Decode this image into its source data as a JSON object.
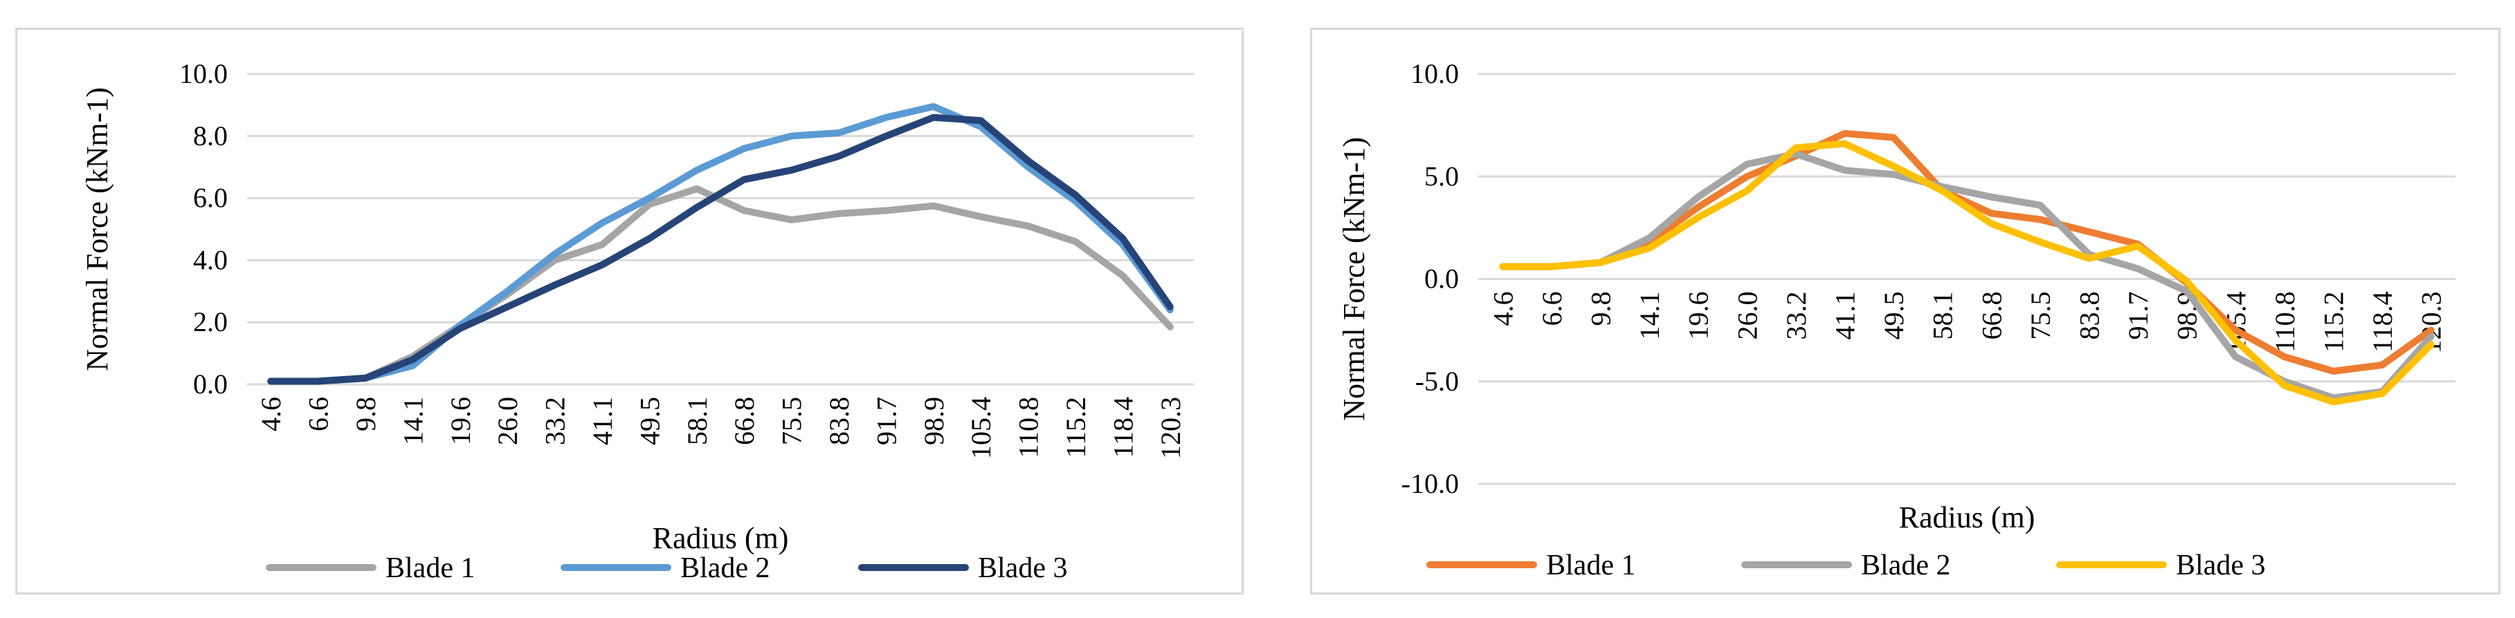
{
  "chart_data": [
    {
      "type": "line",
      "title": "",
      "xlabel": "Radius (m)",
      "ylabel": "Normal Force (kNm-1)",
      "ylim": [
        0,
        10
      ],
      "yticks": [
        "0.0",
        "2.0",
        "4.0",
        "6.0",
        "8.0",
        "10.0"
      ],
      "grid": true,
      "legend_position": "bottom",
      "categories": [
        "4.6",
        "6.6",
        "9.8",
        "14.1",
        "19.6",
        "26.0",
        "33.2",
        "41.1",
        "49.5",
        "58.1",
        "66.8",
        "75.5",
        "83.8",
        "91.7",
        "98.9",
        "105.4",
        "110.8",
        "115.2",
        "118.4",
        "120.3"
      ],
      "series": [
        {
          "name": "Blade 1",
          "color": "#a5a5a5",
          "values": [
            0.1,
            0.1,
            0.2,
            0.9,
            1.9,
            2.9,
            4.0,
            4.5,
            5.8,
            6.3,
            5.6,
            5.3,
            5.5,
            5.6,
            5.75,
            5.4,
            5.1,
            4.6,
            3.5,
            1.85
          ]
        },
        {
          "name": "Blade 2",
          "color": "#5b9bd5",
          "values": [
            0.1,
            0.1,
            0.2,
            0.6,
            1.9,
            3.0,
            4.2,
            5.2,
            6.0,
            6.9,
            7.6,
            8.0,
            8.1,
            8.6,
            8.95,
            8.3,
            7.0,
            5.9,
            4.5,
            2.4
          ]
        },
        {
          "name": "Blade 3",
          "color": "#264478",
          "values": [
            0.1,
            0.1,
            0.2,
            0.8,
            1.8,
            2.5,
            3.2,
            3.85,
            4.7,
            5.7,
            6.6,
            6.9,
            7.35,
            8.0,
            8.6,
            8.5,
            7.2,
            6.1,
            4.7,
            2.5
          ]
        }
      ]
    },
    {
      "type": "line",
      "title": "",
      "xlabel": "Radius (m)",
      "ylabel": "Normal Force (kNm-1)",
      "ylim": [
        -10,
        10
      ],
      "yticks": [
        "-10.0",
        "-5.0",
        "0.0",
        "5.0",
        "10.0"
      ],
      "grid": true,
      "legend_position": "bottom",
      "categories": [
        "4.6",
        "6.6",
        "9.8",
        "14.1",
        "19.6",
        "26.0",
        "33.2",
        "41.1",
        "49.5",
        "58.1",
        "66.8",
        "75.5",
        "83.8",
        "91.7",
        "98.9",
        "105.4",
        "110.8",
        "115.2",
        "118.4",
        "120.3"
      ],
      "series": [
        {
          "name": "Blade 1",
          "color": "#ed7d31",
          "values": [
            0.6,
            0.6,
            0.8,
            1.8,
            3.5,
            5.0,
            6.0,
            7.1,
            6.9,
            4.3,
            3.2,
            2.9,
            2.3,
            1.7,
            -0.2,
            -2.5,
            -3.8,
            -4.5,
            -4.2,
            -2.5
          ]
        },
        {
          "name": "Blade 2",
          "color": "#a5a5a5",
          "values": [
            0.6,
            0.6,
            0.8,
            2.0,
            4.0,
            5.6,
            6.1,
            5.3,
            5.1,
            4.5,
            4.0,
            3.6,
            1.2,
            0.5,
            -0.6,
            -3.8,
            -5.0,
            -5.8,
            -5.5,
            -2.8
          ]
        },
        {
          "name": "Blade 3",
          "color": "#ffc000",
          "values": [
            0.6,
            0.6,
            0.8,
            1.5,
            3.0,
            4.3,
            6.4,
            6.6,
            5.5,
            4.3,
            2.7,
            1.8,
            1.0,
            1.6,
            -0.1,
            -3.0,
            -5.2,
            -6.0,
            -5.6,
            -3.2
          ]
        }
      ]
    }
  ]
}
